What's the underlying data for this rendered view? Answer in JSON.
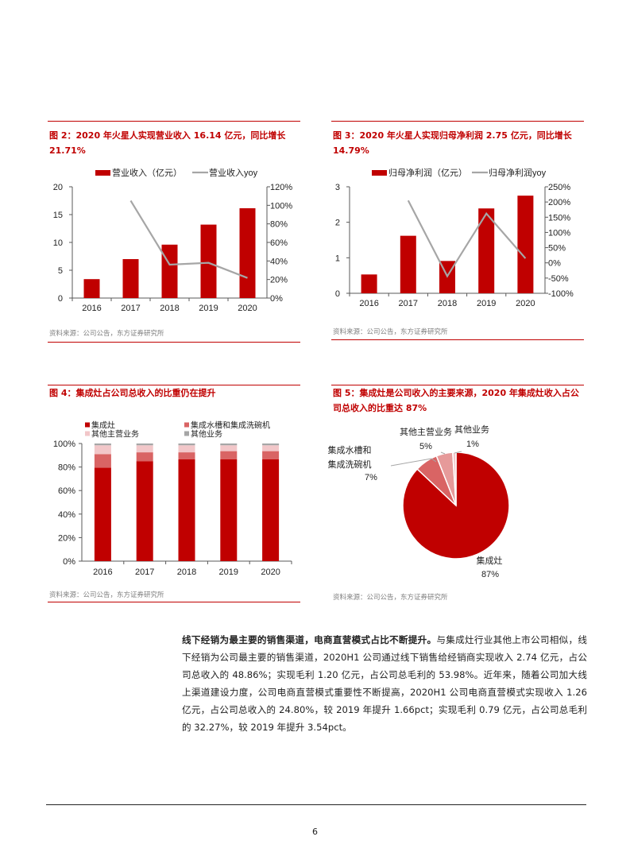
{
  "figures": [
    {
      "title": "图 2：2020 年火星人实现营业收入 16.14 亿元，同比增长 21.71%",
      "source": "资料来源：公司公告，东方证券研究所"
    },
    {
      "title": "图 3：2020 年火星人实现归母净利润 2.75 亿元，同比增长 14.79%",
      "source": "资料来源：公司公告，东方证券研究所"
    },
    {
      "title": "图 4：集成灶占公司总收入的比重仍在提升",
      "source": "资料来源：公司公告，东方证券研究所"
    },
    {
      "title": "图 5：集成灶是公司收入的主要来源，2020 年集成灶收入占公司总收入的比重达 87%",
      "source": "资料来源：公司公告，东方证券研究所"
    }
  ],
  "chart_data": [
    {
      "type": "bar+line",
      "categories": [
        "2016",
        "2017",
        "2018",
        "2019",
        "2020"
      ],
      "series": [
        {
          "name": "营业收入（亿元）",
          "type": "bar",
          "axis": "left",
          "color": "#c00000",
          "values": [
            3.4,
            7.0,
            9.6,
            13.2,
            16.14
          ]
        },
        {
          "name": "营业收入yoy",
          "type": "line",
          "axis": "right",
          "color": "#a6a6a6",
          "values": [
            null,
            105,
            36,
            38,
            21.71
          ]
        }
      ],
      "ylim": [
        0,
        20
      ],
      "yticks": [
        "0",
        "5",
        "10",
        "15",
        "20"
      ],
      "y2lim": [
        0,
        120
      ],
      "y2ticks": [
        "0%",
        "20%",
        "40%",
        "60%",
        "80%",
        "100%",
        "120%"
      ],
      "legend": "top",
      "grid": false
    },
    {
      "type": "bar+line",
      "categories": [
        "2016",
        "2017",
        "2018",
        "2019",
        "2020"
      ],
      "series": [
        {
          "name": "归母净利润（亿元）",
          "type": "bar",
          "axis": "left",
          "color": "#c00000",
          "values": [
            0.53,
            1.62,
            0.91,
            2.39,
            2.75
          ]
        },
        {
          "name": "归母净利润yoy",
          "type": "line",
          "axis": "right",
          "color": "#a6a6a6",
          "values": [
            null,
            205,
            -44,
            162,
            14.79
          ]
        }
      ],
      "ylim": [
        0,
        3
      ],
      "yticks": [
        "0",
        "1",
        "2",
        "3"
      ],
      "y2lim": [
        -100,
        250
      ],
      "y2ticks": [
        "-100%",
        "-50%",
        "0%",
        "50%",
        "100%",
        "150%",
        "200%",
        "250%"
      ],
      "legend": "top",
      "grid": false
    },
    {
      "type": "stacked-bar",
      "categories": [
        "2016",
        "2017",
        "2018",
        "2019",
        "2020"
      ],
      "series": [
        {
          "name": "集成灶",
          "color": "#c00000",
          "values": [
            79.5,
            85,
            86.5,
            86.5,
            86.5
          ]
        },
        {
          "name": "集成水槽和集成洗碗机",
          "color": "#d96464",
          "values": [
            11.5,
            7.5,
            6,
            7,
            7
          ]
        },
        {
          "name": "其他主营业务",
          "color": "#f2c7c9",
          "values": [
            7.5,
            6,
            6,
            5,
            5
          ]
        },
        {
          "name": "其他业务",
          "color": "#a6a6a6",
          "values": [
            1.5,
            1.5,
            1.5,
            1.5,
            1.5
          ]
        }
      ],
      "ylim": [
        0,
        100
      ],
      "yticks": [
        "0%",
        "20%",
        "40%",
        "60%",
        "80%",
        "100%"
      ],
      "legend": "top",
      "grid": false
    },
    {
      "type": "pie",
      "slices": [
        {
          "name": "集成灶",
          "value": 87,
          "label": "87%",
          "color": "#c00000"
        },
        {
          "name": "集成水槽和集成洗碗机",
          "name_lines": [
            "集成水槽和",
            "集成洗碗机"
          ],
          "value": 7,
          "label": "7%",
          "color": "#d96464"
        },
        {
          "name": "其他主营业务",
          "value": 5,
          "label": "5%",
          "color": "#e69a9a"
        },
        {
          "name": "其他业务",
          "value": 1,
          "label": "1%",
          "color": "#f2c7c9"
        }
      ]
    }
  ],
  "body": {
    "lead": "线下经销为最主要的销售渠道，电商直营模式占比不断提升。",
    "text": "与集成灶行业其他上市公司相似，线下经销为公司最主要的销售渠道，2020H1 公司通过线下销售给经销商实现收入 2.74 亿元，占公司总收入的 48.86%；实现毛利 1.20 亿元，占公司总毛利的 53.98%。近年来，随着公司加大线上渠道建设力度，公司电商直营模式重要性不断提高，2020H1 公司电商直营模式实现收入 1.26 亿元，占公司总收入的 24.80%，较 2019 年提升 1.66pct；实现毛利 0.79 亿元，占公司总毛利的 32.27%，较 2019 年提升 3.54pct。"
  },
  "footer": {
    "page_number": "6"
  }
}
